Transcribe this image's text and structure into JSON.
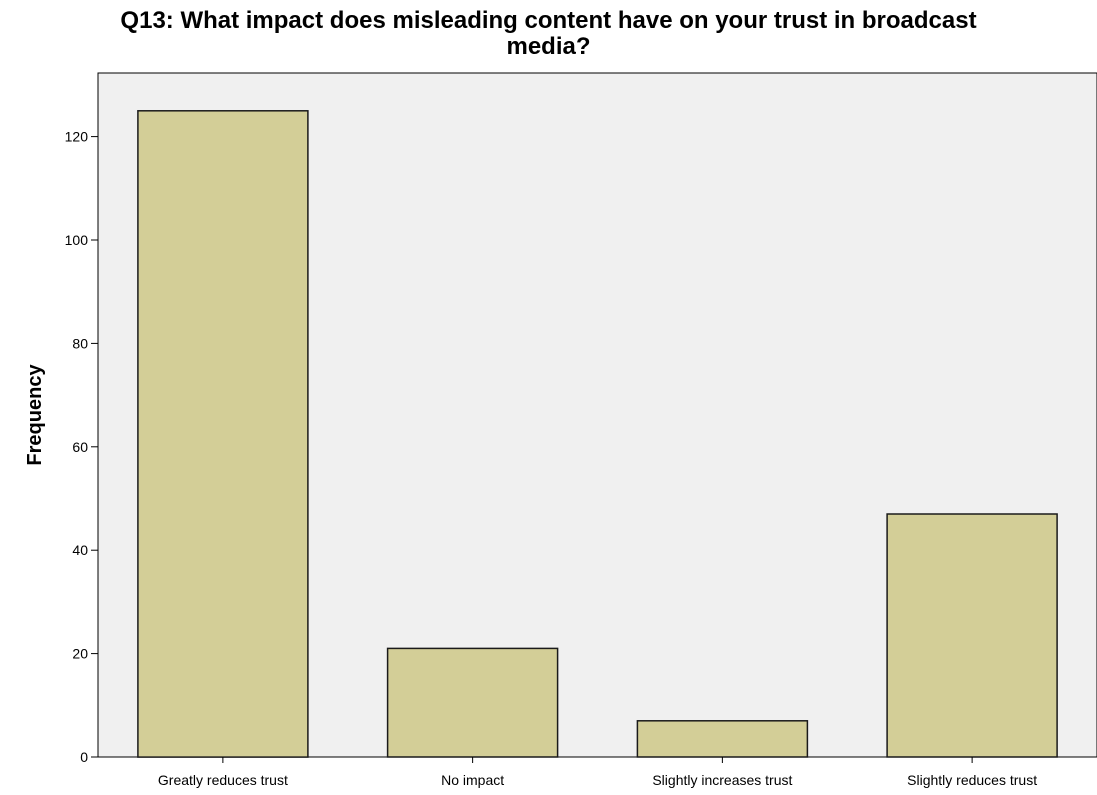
{
  "chart_data": {
    "type": "bar",
    "title_line1": "Q13: What impact does misleading content have on your trust in broadcast",
    "title_line2": "media?",
    "xlabel": "",
    "ylabel": "Frequency",
    "categories": [
      "Greatly reduces trust",
      "No impact",
      "Slightly increases trust",
      "Slightly reduces trust"
    ],
    "values": [
      125,
      21,
      7,
      47
    ],
    "ylim": [
      0,
      130
    ],
    "yticks": [
      0,
      20,
      40,
      60,
      80,
      100,
      120
    ],
    "grid": false,
    "legend": "none",
    "colors": {
      "bar_fill": "#d3ce97",
      "bar_stroke": "#1a1a1a",
      "plot_background": "#f0f0f0",
      "axis": "#000000"
    }
  }
}
